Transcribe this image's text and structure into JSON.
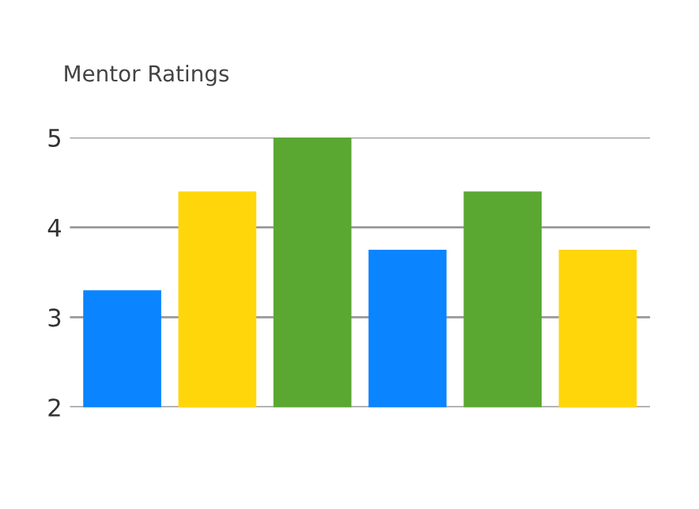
{
  "chart_data": {
    "type": "bar",
    "title": "Mentor Ratings",
    "categories": [
      null,
      null,
      null,
      null,
      null,
      null
    ],
    "values": [
      3.3,
      4.4,
      5,
      3.75,
      4.4,
      3.75
    ],
    "colors": [
      "#0a84ff",
      "#ffd60a",
      "#5aa832",
      "#0a84ff",
      "#5aa832",
      "#ffd60a"
    ],
    "ylim": [
      2,
      5
    ],
    "yticks": [
      2,
      3,
      4,
      5
    ],
    "grid": "y"
  }
}
